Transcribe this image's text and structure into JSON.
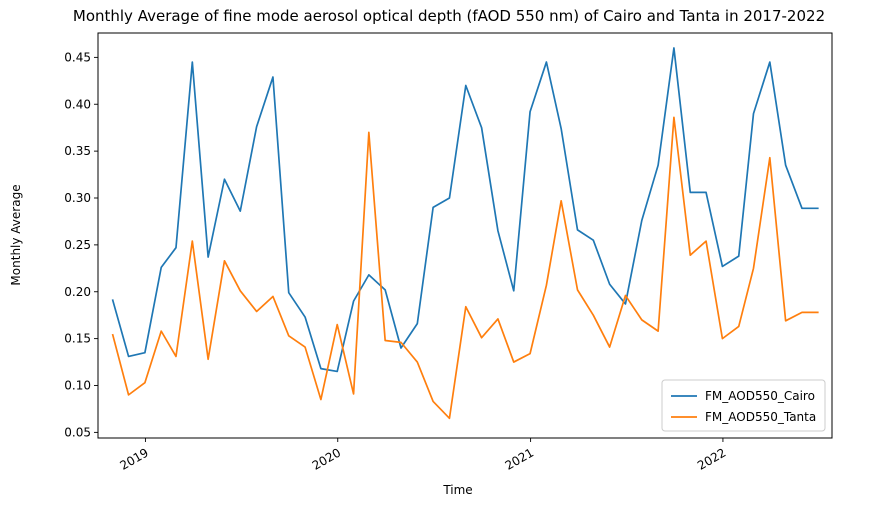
{
  "chart_data": {
    "type": "line",
    "title": "Monthly Average of fine mode aerosol optical depth (fAOD 550 nm) of Cairo and Tanta in 2017-2022",
    "xlabel": "Time",
    "ylabel": "Monthly Average",
    "ylim": [
      0.044,
      0.476
    ],
    "xlim": [
      "2018-10-03",
      "2022-07-27"
    ],
    "grid": false,
    "legend_position": "lower-right",
    "x_ticks": [
      "2019",
      "2020",
      "2021",
      "2022"
    ],
    "y_ticks": [
      "0.05",
      "0.10",
      "0.15",
      "0.20",
      "0.25",
      "0.30",
      "0.35",
      "0.40",
      "0.45"
    ],
    "x": [
      "2018-10-31",
      "2018-11-30",
      "2018-12-31",
      "2019-01-31",
      "2019-02-28",
      "2019-03-31",
      "2019-04-30",
      "2019-05-31",
      "2019-06-30",
      "2019-07-31",
      "2019-08-31",
      "2019-09-30",
      "2019-10-31",
      "2019-11-30",
      "2019-12-31",
      "2020-01-31",
      "2020-02-29",
      "2020-03-31",
      "2020-04-30",
      "2020-05-31",
      "2020-06-30",
      "2020-07-31",
      "2020-08-31",
      "2020-09-30",
      "2020-10-31",
      "2020-11-30",
      "2020-12-31",
      "2021-01-31",
      "2021-02-28",
      "2021-03-31",
      "2021-04-30",
      "2021-05-31",
      "2021-06-30",
      "2021-07-31",
      "2021-08-31",
      "2021-09-30",
      "2021-10-31",
      "2021-11-30",
      "2021-12-31",
      "2022-01-31",
      "2022-02-28",
      "2022-03-31",
      "2022-04-30",
      "2022-05-31",
      "2022-06-30"
    ],
    "series": [
      {
        "name": "FM_AOD550_Cairo",
        "color": "#1f77b4",
        "values": [
          0.191,
          0.131,
          0.135,
          0.226,
          0.247,
          0.445,
          0.237,
          0.32,
          0.286,
          0.376,
          0.429,
          0.199,
          0.173,
          0.118,
          0.115,
          0.19,
          0.218,
          0.202,
          0.14,
          0.166,
          0.29,
          0.3,
          0.42,
          0.375,
          0.265,
          0.201,
          0.392,
          0.445,
          0.374,
          0.266,
          0.255,
          0.208,
          0.187,
          0.276,
          0.335,
          0.46,
          0.306,
          0.306,
          0.227,
          0.238,
          0.39,
          0.445,
          0.335,
          0.289,
          0.289
        ]
      },
      {
        "name": "FM_AOD550_Tanta",
        "color": "#ff7f0e",
        "values": [
          0.154,
          0.09,
          0.103,
          0.158,
          0.131,
          0.254,
          0.128,
          0.233,
          0.201,
          0.179,
          0.195,
          0.153,
          0.141,
          0.085,
          0.165,
          0.091,
          0.37,
          0.148,
          0.146,
          0.125,
          0.083,
          0.065,
          0.184,
          0.151,
          0.171,
          0.125,
          0.134,
          0.207,
          0.297,
          0.202,
          0.175,
          0.141,
          0.196,
          0.17,
          0.158,
          0.386,
          0.239,
          0.254,
          0.15,
          0.163,
          0.225,
          0.343,
          0.169,
          0.178,
          0.178
        ]
      }
    ]
  }
}
